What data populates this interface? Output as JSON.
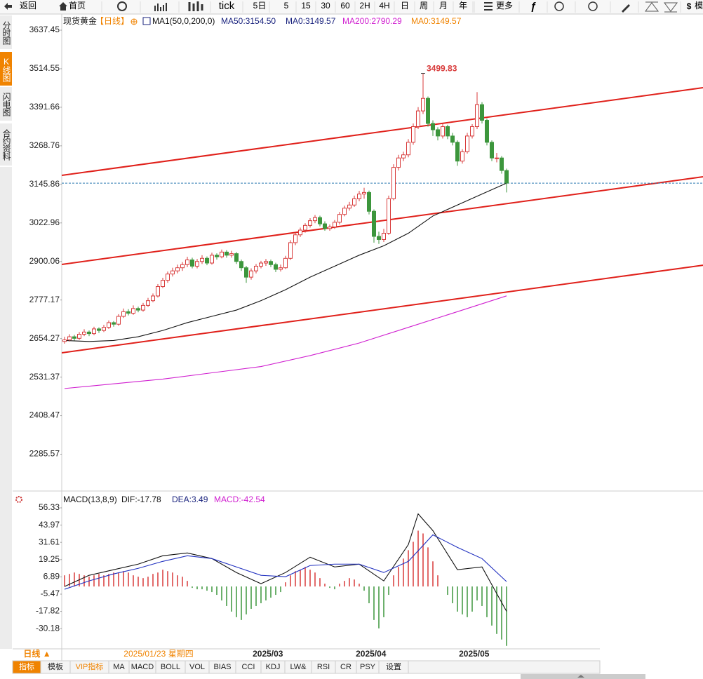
{
  "toolbar": {
    "back": "返回",
    "home": "首页",
    "tick": "tick",
    "periods": [
      "5日",
      "5",
      "15",
      "30",
      "60",
      "2H",
      "4H",
      "日",
      "周",
      "月",
      "年"
    ],
    "more": "更多",
    "cut": "模"
  },
  "sidebar": [
    "分时图",
    "K线图",
    "闪电图",
    "合约资料"
  ],
  "period_button": "日线 ▲",
  "bottom_tabs": [
    "指标",
    "模板",
    "VIP指标",
    "MA",
    "MACD",
    "BOLL",
    "VOL",
    "BIAS",
    "CCI",
    "KDJ",
    "LW&",
    "RSI",
    "CR",
    "PSY",
    "设置"
  ],
  "chart_data": [
    {
      "type": "candlestick",
      "title": "现货黄金",
      "period": "【日线】",
      "indicator": "MA1(50,0,200,0)",
      "legend": [
        {
          "text": "MA50:3154.50",
          "color": "#1a237e"
        },
        {
          "text": "MA0:3149.57",
          "color": "#1a237e"
        },
        {
          "text": "MA200:2790.29",
          "color": "#d020d0"
        },
        {
          "text": "MA0:3149.57",
          "color": "#f08300"
        }
      ],
      "up_color": "#d83a3a",
      "down_color": "#3c963c",
      "candles": [
        [
          2645,
          2660,
          2638,
          2650
        ],
        [
          2650,
          2668,
          2645,
          2660
        ],
        [
          2660,
          2666,
          2648,
          2655
        ],
        [
          2655,
          2675,
          2650,
          2668
        ],
        [
          2668,
          2684,
          2662,
          2675
        ],
        [
          2675,
          2680,
          2662,
          2670
        ],
        [
          2670,
          2692,
          2665,
          2685
        ],
        [
          2685,
          2690,
          2672,
          2680
        ],
        [
          2680,
          2698,
          2675,
          2690
        ],
        [
          2690,
          2712,
          2685,
          2705
        ],
        [
          2705,
          2710,
          2692,
          2700
        ],
        [
          2700,
          2732,
          2695,
          2725
        ],
        [
          2725,
          2750,
          2720,
          2740
        ],
        [
          2740,
          2748,
          2728,
          2735
        ],
        [
          2735,
          2760,
          2730,
          2750
        ],
        [
          2750,
          2756,
          2738,
          2745
        ],
        [
          2745,
          2768,
          2740,
          2760
        ],
        [
          2760,
          2784,
          2755,
          2775
        ],
        [
          2775,
          2798,
          2770,
          2790
        ],
        [
          2790,
          2828,
          2785,
          2820
        ],
        [
          2820,
          2848,
          2815,
          2840
        ],
        [
          2840,
          2868,
          2832,
          2860
        ],
        [
          2860,
          2880,
          2852,
          2870
        ],
        [
          2870,
          2890,
          2862,
          2880
        ],
        [
          2880,
          2898,
          2870,
          2890
        ],
        [
          2890,
          2915,
          2882,
          2905
        ],
        [
          2905,
          2912,
          2878,
          2885
        ],
        [
          2885,
          2908,
          2878,
          2900
        ],
        [
          2900,
          2920,
          2892,
          2910
        ],
        [
          2910,
          2916,
          2888,
          2895
        ],
        [
          2895,
          2928,
          2890,
          2920
        ],
        [
          2920,
          2926,
          2906,
          2915
        ],
        [
          2915,
          2938,
          2910,
          2930
        ],
        [
          2930,
          2936,
          2912,
          2920
        ],
        [
          2920,
          2934,
          2912,
          2925
        ],
        [
          2925,
          2930,
          2892,
          2900
        ],
        [
          2900,
          2906,
          2870,
          2880
        ],
        [
          2880,
          2886,
          2832,
          2850
        ],
        [
          2850,
          2878,
          2842,
          2870
        ],
        [
          2870,
          2892,
          2862,
          2885
        ],
        [
          2885,
          2902,
          2878,
          2895
        ],
        [
          2895,
          2908,
          2886,
          2900
        ],
        [
          2900,
          2906,
          2882,
          2890
        ],
        [
          2890,
          2896,
          2866,
          2875
        ],
        [
          2875,
          2890,
          2868,
          2880
        ],
        [
          2880,
          2918,
          2876,
          2910
        ],
        [
          2910,
          2968,
          2905,
          2960
        ],
        [
          2960,
          2992,
          2952,
          2985
        ],
        [
          2985,
          3008,
          2978,
          3000
        ],
        [
          3000,
          3022,
          2992,
          3015
        ],
        [
          3015,
          3038,
          3008,
          3030
        ],
        [
          3030,
          3048,
          3022,
          3040
        ],
        [
          3040,
          3046,
          3012,
          3020
        ],
        [
          3020,
          3028,
          2998,
          3005
        ],
        [
          3005,
          3018,
          2998,
          3010
        ],
        [
          3010,
          3032,
          3004,
          3025
        ],
        [
          3025,
          3058,
          3018,
          3050
        ],
        [
          3050,
          3078,
          3044,
          3070
        ],
        [
          3070,
          3090,
          3062,
          3080
        ],
        [
          3080,
          3110,
          3074,
          3100
        ],
        [
          3100,
          3125,
          3092,
          3115
        ],
        [
          3115,
          3135,
          3100,
          3120
        ],
        [
          3120,
          3126,
          3050,
          3060
        ],
        [
          3060,
          3066,
          2960,
          2980
        ],
        [
          2980,
          2995,
          2956,
          2970
        ],
        [
          2970,
          3004,
          2962,
          2990
        ],
        [
          2990,
          3110,
          2985,
          3100
        ],
        [
          3100,
          3210,
          3095,
          3200
        ],
        [
          3200,
          3240,
          3190,
          3230
        ],
        [
          3230,
          3250,
          3220,
          3240
        ],
        [
          3240,
          3290,
          3232,
          3280
        ],
        [
          3280,
          3340,
          3272,
          3330
        ],
        [
          3330,
          3392,
          3322,
          3380
        ],
        [
          3380,
          3499.83,
          3370,
          3420
        ],
        [
          3420,
          3426,
          3330,
          3340
        ],
        [
          3340,
          3350,
          3300,
          3320
        ],
        [
          3320,
          3328,
          3286,
          3300
        ],
        [
          3300,
          3340,
          3292,
          3330
        ],
        [
          3330,
          3336,
          3290,
          3300
        ],
        [
          3300,
          3310,
          3270,
          3280
        ],
        [
          3280,
          3286,
          3205,
          3220
        ],
        [
          3220,
          3258,
          3212,
          3250
        ],
        [
          3250,
          3310,
          3244,
          3300
        ],
        [
          3300,
          3338,
          3292,
          3330
        ],
        [
          3330,
          3440,
          3322,
          3400
        ],
        [
          3400,
          3408,
          3340,
          3350
        ],
        [
          3350,
          3356,
          3270,
          3280
        ],
        [
          3280,
          3286,
          3220,
          3230
        ],
        [
          3230,
          3246,
          3216,
          3230
        ],
        [
          3230,
          3236,
          3180,
          3190
        ],
        [
          3190,
          3196,
          3120,
          3150
        ]
      ],
      "high_label_index": 73,
      "series": [
        {
          "color": "#111111",
          "x": [
            0,
            5,
            10,
            15,
            20,
            25,
            30,
            35,
            40,
            45,
            50,
            55,
            60,
            65,
            70,
            75,
            80,
            85,
            90
          ],
          "values": [
            2648,
            2645,
            2648,
            2660,
            2680,
            2705,
            2725,
            2745,
            2775,
            2810,
            2850,
            2885,
            2920,
            2950,
            2990,
            3045,
            3080,
            3115,
            3149.57
          ]
        },
        {
          "color": "#d020d0",
          "x": [
            0,
            10,
            20,
            30,
            40,
            50,
            60,
            70,
            80,
            90
          ],
          "values": [
            2495,
            2510,
            2525,
            2545,
            2565,
            2600,
            2640,
            2690,
            2740,
            2790.29
          ]
        }
      ],
      "trendlines": [
        [
          3174.5,
          3454
        ],
        [
          2890.5,
          3170
        ],
        [
          2608.8,
          2888
        ]
      ],
      "trendline_color": "#e0201a",
      "last_price": 3149.57,
      "xlim": [
        -0.57,
        130
      ],
      "xticks": [
        {
          "value": 41.4,
          "label": "2025/03"
        },
        {
          "value": 62.4,
          "label": "2025/04"
        },
        {
          "value": 83.4,
          "label": "2025/05"
        }
      ],
      "cursor_date": "2025/01/23 星期四",
      "ylim": [
        2168.2,
        3677.7
      ],
      "yticks": [
        3637.45,
        3514.55,
        3391.66,
        3268.76,
        3145.86,
        3022.96,
        2900.06,
        2777.17,
        2654.27,
        2531.37,
        2408.47,
        2285.57
      ],
      "grid": false
    },
    {
      "type": "macd",
      "title": "MACD(13,8,9)",
      "legend": [
        {
          "text": "DIF:-17.78",
          "color": "#111111"
        },
        {
          "text": "DEA:3.49",
          "color": "#1a237e"
        },
        {
          "text": "MACD:-42.54",
          "color": "#d020d0"
        }
      ],
      "up_color": "#d83a3a",
      "down_color": "#3c963c",
      "histogram": [
        8,
        9,
        10,
        9,
        8,
        7,
        8,
        9,
        8,
        9,
        10,
        10,
        11,
        10,
        8,
        7,
        6,
        7,
        9,
        10,
        12,
        11,
        10,
        8,
        7,
        4,
        -1,
        -2,
        -2,
        -3,
        -4,
        -6,
        -10,
        -14,
        -18,
        -22,
        -24,
        -20,
        -16,
        -14,
        -12,
        -10,
        -8,
        -6,
        -4,
        3,
        8,
        11,
        12,
        14,
        12,
        10,
        6,
        2,
        -1,
        -2,
        2,
        4,
        6,
        5,
        2,
        -3,
        -12,
        -24,
        -30,
        -22,
        -6,
        8,
        14,
        20,
        26,
        32,
        40,
        38,
        28,
        18,
        8,
        0,
        -6,
        -12,
        -18,
        -20,
        -22,
        -18,
        -10,
        -14,
        -22,
        -28,
        -34,
        -38,
        -42.54
      ],
      "series": [
        {
          "color": "#111111",
          "x": [
            0,
            5,
            10,
            15,
            20,
            25,
            30,
            35,
            40,
            45,
            50,
            55,
            60,
            65,
            70,
            72,
            75,
            80,
            85,
            90
          ],
          "values": [
            0,
            8,
            12,
            16,
            22,
            24,
            20,
            10,
            2,
            10,
            21,
            14,
            16,
            4,
            30,
            52,
            40,
            12,
            14,
            -17.78
          ]
        },
        {
          "color": "#2030c0",
          "x": [
            0,
            5,
            10,
            15,
            20,
            25,
            30,
            35,
            40,
            45,
            50,
            55,
            60,
            65,
            70,
            75,
            80,
            85,
            90
          ],
          "values": [
            -2,
            4,
            9,
            13,
            18,
            22,
            20,
            14,
            8,
            7,
            15,
            16,
            16,
            10,
            18,
            37,
            28,
            20,
            3.49
          ]
        }
      ],
      "xlim": [
        -0.57,
        130
      ],
      "ylim": [
        -44.67,
        58.34
      ],
      "yticks": [
        56.33,
        43.97,
        31.61,
        19.25,
        6.89,
        -5.47,
        -17.82,
        -30.18
      ],
      "grid": false
    }
  ]
}
